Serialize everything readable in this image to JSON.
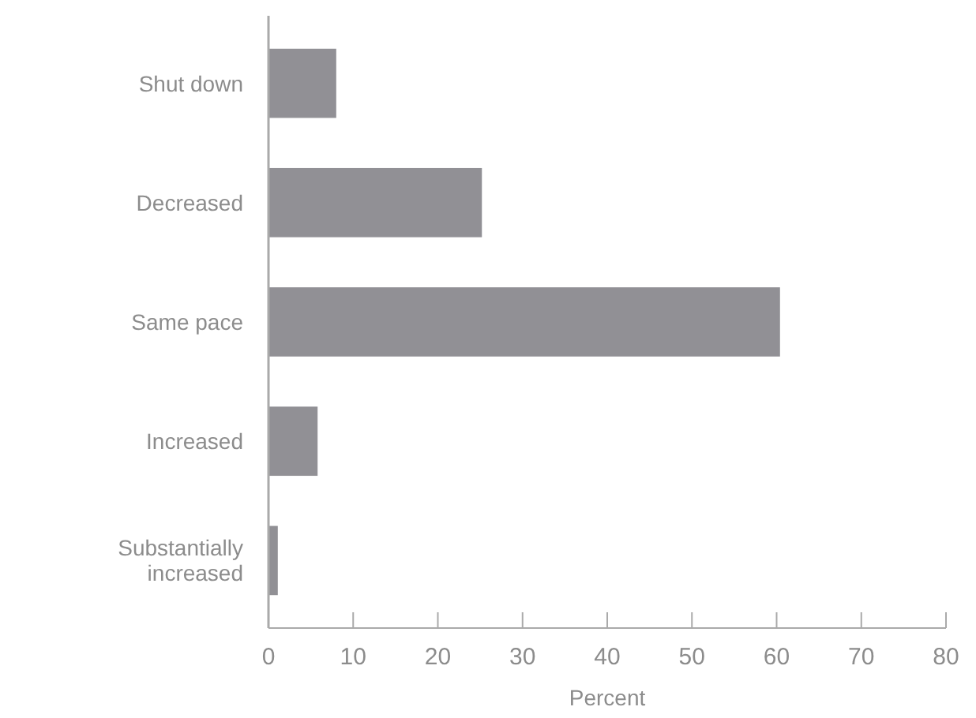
{
  "chart_data": {
    "type": "bar",
    "orientation": "horizontal",
    "categories": [
      "Shut down",
      "Decreased",
      "Same pace",
      "Increased",
      "Substantially increased"
    ],
    "values": [
      8.0,
      25.2,
      60.4,
      5.8,
      1.1
    ],
    "color": "#919095",
    "xlim": [
      0,
      80
    ],
    "xticks": [
      0,
      10,
      20,
      30,
      40,
      50,
      60,
      70,
      80
    ],
    "xlabel": "Percent"
  }
}
